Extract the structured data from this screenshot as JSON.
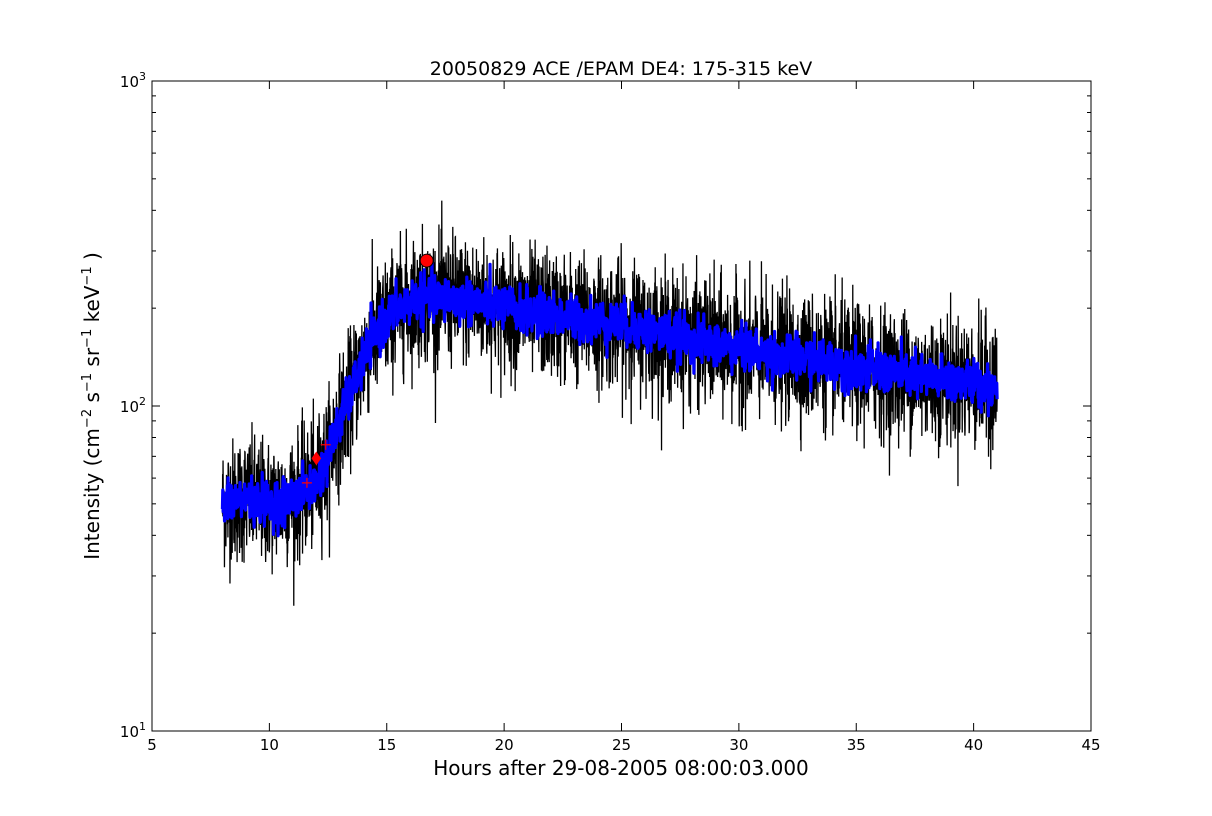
{
  "chart_data": {
    "type": "line",
    "title": "20050829 ACE /EPAM DE4: 175-315 keV",
    "xlabel": "Hours after 29-08-2005 08:00:03.000",
    "ylabel": {
      "parts": [
        {
          "t": "Intensity (cm",
          "sup": false
        },
        {
          "t": "−2",
          "sup": true
        },
        {
          "t": " s",
          "sup": false
        },
        {
          "t": "−1",
          "sup": true
        },
        {
          "t": " sr",
          "sup": false
        },
        {
          "t": "−1",
          "sup": true
        },
        {
          "t": " keV",
          "sup": false
        },
        {
          "t": "−1",
          "sup": true
        },
        {
          "t": " )",
          "sup": false
        }
      ]
    },
    "xlim": [
      5,
      45
    ],
    "ylim": [
      10,
      1000
    ],
    "yscale": "log",
    "grid": false,
    "x_ticks": [
      5,
      10,
      15,
      20,
      25,
      30,
      35,
      40,
      45
    ],
    "y_ticks": [
      {
        "value": 10,
        "base": "10",
        "exp": "1"
      },
      {
        "value": 100,
        "base": "10",
        "exp": "2"
      },
      {
        "value": 1000,
        "base": "10",
        "exp": "3"
      }
    ],
    "series": [
      {
        "role": "raw",
        "color": "#000000",
        "x_start": 8.0,
        "x_end": 41.0,
        "envelope": {
          "x": [
            8.0,
            9.0,
            10.0,
            11.0,
            11.5,
            12.0,
            12.5,
            13.0,
            13.5,
            14.0,
            14.5,
            15.0,
            15.5,
            16.0,
            16.5,
            17.0,
            18.0,
            19.0,
            20.0,
            21.0,
            22.0,
            23.0,
            24.0,
            25.0,
            26.0,
            27.0,
            28.0,
            29.0,
            30.0,
            31.0,
            32.0,
            33.0,
            34.0,
            35.0,
            36.0,
            37.0,
            38.0,
            39.0,
            40.0,
            41.0
          ],
          "mid": [
            50,
            52,
            50,
            52,
            55,
            58,
            70,
            90,
            110,
            140,
            165,
            185,
            200,
            210,
            215,
            215,
            212,
            208,
            200,
            195,
            190,
            185,
            182,
            178,
            172,
            165,
            160,
            155,
            150,
            145,
            142,
            140,
            136,
            132,
            128,
            125,
            122,
            120,
            118,
            115
          ]
        },
        "noise_ratio": 0.22
      },
      {
        "role": "smoothed",
        "color": "#0000ff",
        "x": [
          8.0,
          9.0,
          10.0,
          11.0,
          11.5,
          12.0,
          12.5,
          13.0,
          13.5,
          14.0,
          14.5,
          15.0,
          15.5,
          16.0,
          16.5,
          17.0,
          18.0,
          19.0,
          20.0,
          21.0,
          22.0,
          23.0,
          24.0,
          25.0,
          26.0,
          27.0,
          28.0,
          29.0,
          30.0,
          31.0,
          32.0,
          33.0,
          34.0,
          35.0,
          36.0,
          37.0,
          38.0,
          39.0,
          40.0,
          41.0
        ],
        "y": [
          50,
          52,
          50,
          52,
          55,
          58,
          70,
          90,
          110,
          140,
          165,
          185,
          200,
          210,
          215,
          215,
          212,
          208,
          200,
          195,
          190,
          185,
          182,
          178,
          172,
          165,
          160,
          155,
          150,
          145,
          142,
          140,
          136,
          132,
          128,
          125,
          122,
          120,
          118,
          115
        ],
        "noise_ratio": 0.08
      }
    ],
    "markers": [
      {
        "shape": "circle",
        "x": 16.7,
        "y": 280,
        "color": "#ff0000"
      },
      {
        "shape": "diamond",
        "x": 12.0,
        "y": 69,
        "color": "#ff0000"
      },
      {
        "shape": "plus",
        "x": 11.6,
        "y": 58,
        "color": "#ff0000"
      },
      {
        "shape": "plus",
        "x": 12.4,
        "y": 76,
        "color": "#ff0000"
      }
    ]
  }
}
